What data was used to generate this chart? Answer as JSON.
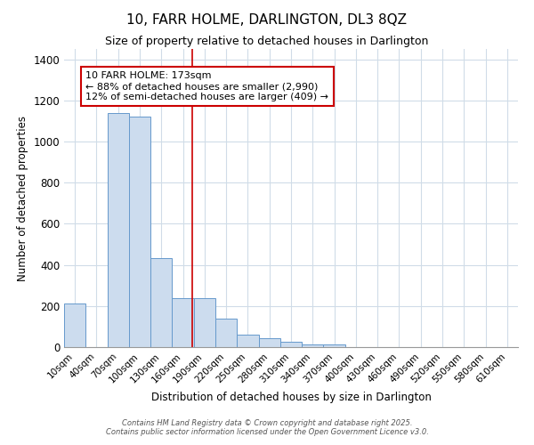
{
  "title": "10, FARR HOLME, DARLINGTON, DL3 8QZ",
  "subtitle": "Size of property relative to detached houses in Darlington",
  "xlabel": "Distribution of detached houses by size in Darlington",
  "ylabel": "Number of detached properties",
  "bar_color": "#ccdcee",
  "bar_edge_color": "#6699cc",
  "background_color": "#ffffff",
  "grid_color": "#d0dce8",
  "categories": [
    "10sqm",
    "40sqm",
    "70sqm",
    "100sqm",
    "130sqm",
    "160sqm",
    "190sqm",
    "220sqm",
    "250sqm",
    "280sqm",
    "310sqm",
    "340sqm",
    "370sqm",
    "400sqm",
    "430sqm",
    "460sqm",
    "490sqm",
    "520sqm",
    "550sqm",
    "580sqm",
    "610sqm"
  ],
  "values": [
    210,
    0,
    1140,
    1120,
    435,
    240,
    240,
    140,
    60,
    45,
    25,
    15,
    15,
    0,
    0,
    0,
    0,
    0,
    0,
    0,
    0
  ],
  "ylim": [
    0,
    1450
  ],
  "yticks": [
    0,
    200,
    400,
    600,
    800,
    1000,
    1200,
    1400
  ],
  "annotation_text": "10 FARR HOLME: 173sqm\n← 88% of detached houses are smaller (2,990)\n12% of semi-detached houses are larger (409) →",
  "vline_color": "#cc0000",
  "annotation_box_edgecolor": "#cc0000",
  "footer_line1": "Contains HM Land Registry data © Crown copyright and database right 2025.",
  "footer_line2": "Contains public sector information licensed under the Open Government Licence v3.0."
}
